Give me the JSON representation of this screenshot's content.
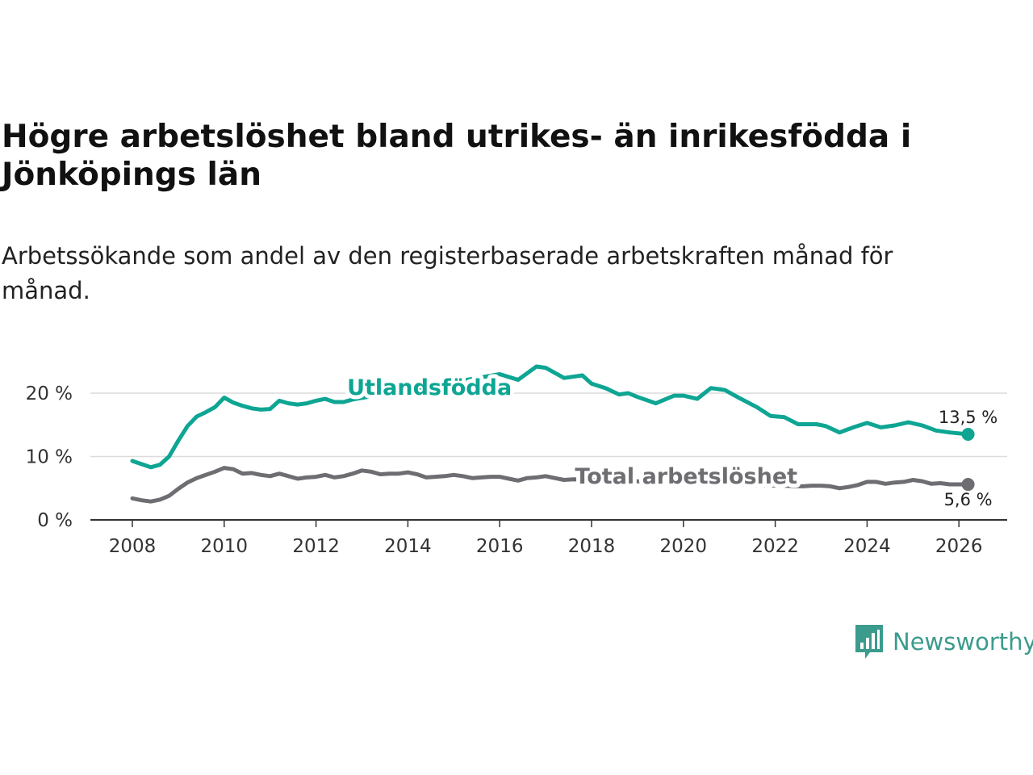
{
  "title": "Högre arbetslöshet bland utrikes- än inrikesfödda i Jönköpings län",
  "subtitle": "Arbetssökande som andel av den registerbaserade arbetskraften månad för månad.",
  "brand": {
    "name": "Newsworthy",
    "color": "#3b9b8c",
    "logo_icon": "bar-chart-speech-bubble-icon"
  },
  "chart_data": {
    "type": "line",
    "xlabel": "",
    "ylabel": "",
    "xlim": [
      2007.1,
      2027.1
    ],
    "ylim": [
      0,
      20
    ],
    "x_ticks": [
      2008,
      2010,
      2012,
      2014,
      2016,
      2018,
      2020,
      2022,
      2024,
      2026
    ],
    "x_tick_labels": [
      "2008",
      "2010",
      "2012",
      "2014",
      "2016",
      "2018",
      "2020",
      "2022",
      "2024",
      "2026"
    ],
    "y_ticks": [
      0,
      10,
      20
    ],
    "y_tick_labels": [
      "0 %",
      "10 %",
      "20 %"
    ],
    "grid": true,
    "series": [
      {
        "name": "Utlandsfödda",
        "color": "#0ea593",
        "end_label": "13,5 %",
        "points": [
          [
            2008.0,
            9.3
          ],
          [
            2008.2,
            8.8
          ],
          [
            2008.4,
            8.3
          ],
          [
            2008.6,
            8.7
          ],
          [
            2008.8,
            10.0
          ],
          [
            2009.0,
            12.5
          ],
          [
            2009.2,
            14.8
          ],
          [
            2009.4,
            16.3
          ],
          [
            2009.6,
            17.0
          ],
          [
            2009.8,
            17.8
          ],
          [
            2010.0,
            19.3
          ],
          [
            2010.2,
            18.5
          ],
          [
            2010.4,
            18.0
          ],
          [
            2010.6,
            17.6
          ],
          [
            2010.8,
            17.4
          ],
          [
            2011.0,
            17.5
          ],
          [
            2011.2,
            18.8
          ],
          [
            2011.4,
            18.4
          ],
          [
            2011.6,
            18.2
          ],
          [
            2011.8,
            18.4
          ],
          [
            2012.0,
            18.8
          ],
          [
            2012.2,
            19.1
          ],
          [
            2012.4,
            18.6
          ],
          [
            2012.6,
            18.6
          ],
          [
            2012.8,
            19.0
          ],
          [
            2016.0,
            23.0
          ],
          [
            2016.4,
            22.1
          ],
          [
            2016.8,
            24.2
          ],
          [
            2017.0,
            24.0
          ],
          [
            2017.4,
            22.4
          ],
          [
            2017.8,
            22.8
          ],
          [
            2018.0,
            21.5
          ],
          [
            2018.3,
            20.8
          ],
          [
            2018.6,
            19.8
          ],
          [
            2018.8,
            20.0
          ],
          [
            2019.0,
            19.4
          ],
          [
            2019.4,
            18.4
          ],
          [
            2019.8,
            19.6
          ],
          [
            2020.0,
            19.6
          ],
          [
            2020.3,
            19.1
          ],
          [
            2020.6,
            20.8
          ],
          [
            2020.9,
            20.5
          ],
          [
            2021.2,
            19.3
          ],
          [
            2021.6,
            17.8
          ],
          [
            2021.9,
            16.4
          ],
          [
            2022.2,
            16.2
          ],
          [
            2022.5,
            15.1
          ],
          [
            2022.9,
            15.1
          ],
          [
            2023.1,
            14.8
          ],
          [
            2023.4,
            13.8
          ],
          [
            2023.7,
            14.6
          ],
          [
            2024.0,
            15.3
          ],
          [
            2024.3,
            14.6
          ],
          [
            2024.6,
            14.9
          ],
          [
            2024.9,
            15.4
          ],
          [
            2025.2,
            14.9
          ],
          [
            2025.5,
            14.1
          ],
          [
            2025.8,
            13.8
          ],
          [
            2026.2,
            13.5
          ]
        ]
      },
      {
        "name": "Total arbetslöshet",
        "color": "#6e6d72",
        "end_label": "5,6 %",
        "points": [
          [
            2008.0,
            3.4
          ],
          [
            2008.2,
            3.1
          ],
          [
            2008.4,
            2.9
          ],
          [
            2008.6,
            3.2
          ],
          [
            2008.8,
            3.8
          ],
          [
            2009.0,
            4.9
          ],
          [
            2009.2,
            5.9
          ],
          [
            2009.4,
            6.6
          ],
          [
            2009.6,
            7.1
          ],
          [
            2009.8,
            7.6
          ],
          [
            2010.0,
            8.2
          ],
          [
            2010.2,
            8.0
          ],
          [
            2010.4,
            7.3
          ],
          [
            2010.6,
            7.4
          ],
          [
            2010.8,
            7.1
          ],
          [
            2011.0,
            6.9
          ],
          [
            2011.2,
            7.3
          ],
          [
            2011.4,
            6.9
          ],
          [
            2011.6,
            6.5
          ],
          [
            2011.8,
            6.7
          ],
          [
            2012.0,
            6.8
          ],
          [
            2012.2,
            7.1
          ],
          [
            2012.4,
            6.7
          ],
          [
            2012.6,
            6.9
          ],
          [
            2012.8,
            7.3
          ],
          [
            2013.0,
            7.8
          ],
          [
            2013.2,
            7.6
          ],
          [
            2013.4,
            7.2
          ],
          [
            2013.6,
            7.3
          ],
          [
            2013.8,
            7.3
          ],
          [
            2014.0,
            7.5
          ],
          [
            2014.2,
            7.2
          ],
          [
            2014.4,
            6.7
          ],
          [
            2014.6,
            6.8
          ],
          [
            2014.8,
            6.9
          ],
          [
            2015.0,
            7.1
          ],
          [
            2015.2,
            6.9
          ],
          [
            2015.4,
            6.6
          ],
          [
            2015.6,
            6.7
          ],
          [
            2015.8,
            6.8
          ],
          [
            2016.0,
            6.8
          ],
          [
            2016.2,
            6.5
          ],
          [
            2016.4,
            6.2
          ],
          [
            2016.6,
            6.6
          ],
          [
            2016.8,
            6.7
          ],
          [
            2017.0,
            6.9
          ],
          [
            2017.2,
            6.6
          ],
          [
            2017.4,
            6.3
          ],
          [
            2017.6,
            6.4
          ],
          [
            2022.6,
            5.3
          ],
          [
            2022.8,
            5.4
          ],
          [
            2023.0,
            5.4
          ],
          [
            2023.2,
            5.3
          ],
          [
            2023.4,
            5.0
          ],
          [
            2023.6,
            5.2
          ],
          [
            2023.8,
            5.5
          ],
          [
            2024.0,
            6.0
          ],
          [
            2024.2,
            6.0
          ],
          [
            2024.4,
            5.7
          ],
          [
            2024.6,
            5.9
          ],
          [
            2024.8,
            6.0
          ],
          [
            2025.0,
            6.3
          ],
          [
            2025.2,
            6.1
          ],
          [
            2025.4,
            5.7
          ],
          [
            2025.6,
            5.8
          ],
          [
            2025.8,
            5.6
          ],
          [
            2026.2,
            5.6
          ]
        ]
      }
    ]
  }
}
